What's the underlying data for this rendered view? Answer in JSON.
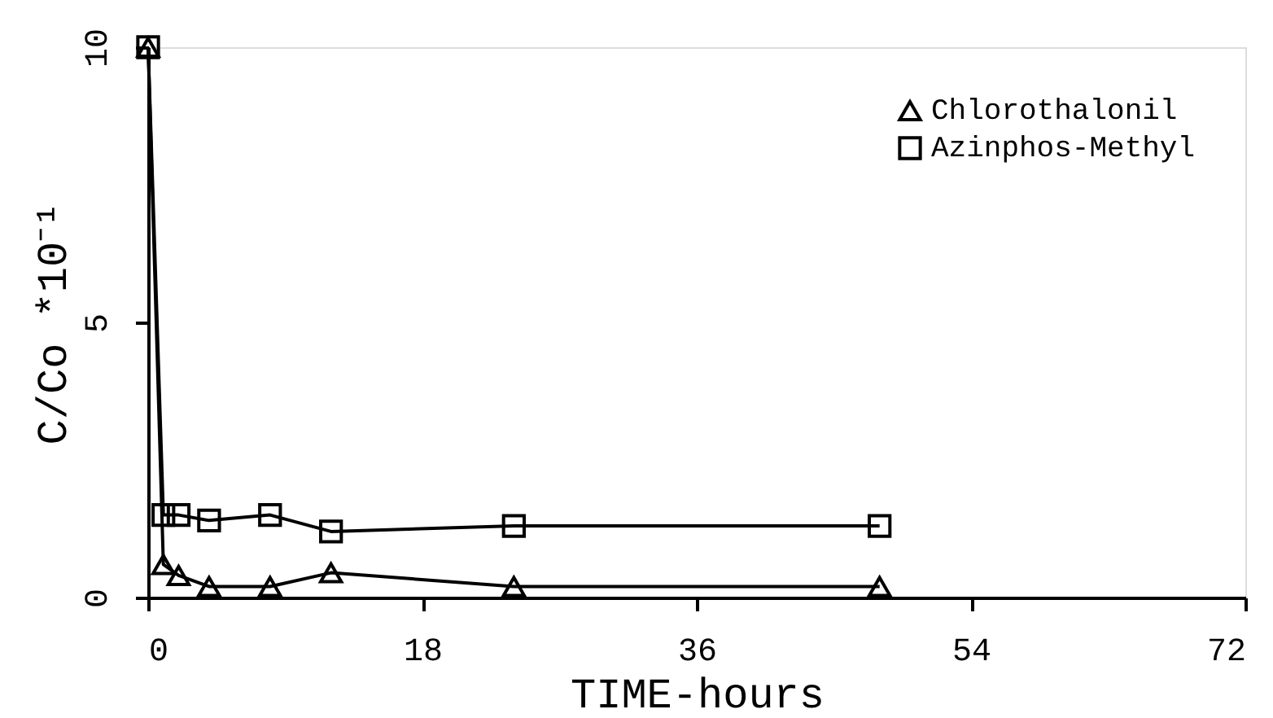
{
  "chart_data": {
    "type": "line",
    "xlabel": "TIME-hours",
    "ylabel": "C/Co *10⁻¹",
    "xlim": [
      0,
      72
    ],
    "xticks": [
      0,
      18,
      36,
      54,
      72
    ],
    "ylim": [
      0,
      10
    ],
    "yticks": [
      0,
      5,
      10
    ],
    "grid": false,
    "legend": "top right",
    "line_style": "solid",
    "series": [
      {
        "name": "Chlorothalonil",
        "color": "#000000",
        "marker": "triangle",
        "x": [
          0,
          1,
          2,
          4,
          8,
          12,
          24,
          48
        ],
        "values": [
          10,
          0.6,
          0.4,
          0.2,
          0.2,
          0.45,
          0.2,
          0.2
        ]
      },
      {
        "name": "Azinphos-Methyl",
        "color": "#000000",
        "marker": "square",
        "x": [
          0,
          1,
          2,
          4,
          8,
          12,
          24,
          48
        ],
        "values": [
          10,
          1.5,
          1.5,
          1.4,
          1.5,
          1.2,
          1.3,
          1.3
        ]
      }
    ]
  }
}
